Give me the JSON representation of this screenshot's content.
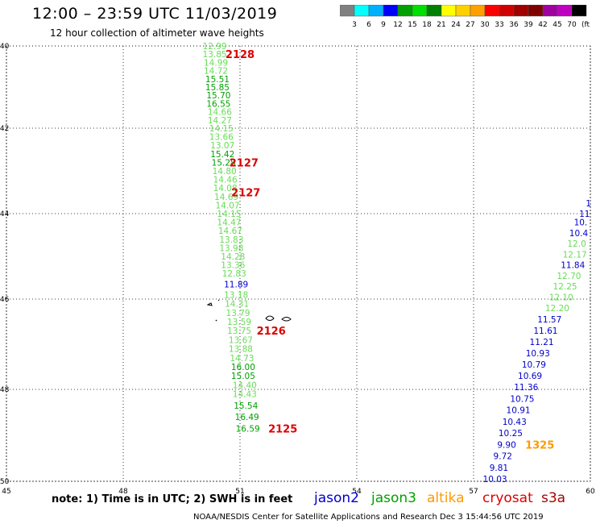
{
  "header": {
    "title": "12:00 – 23:59 UTC 11/03/2019",
    "subtitle": "12 hour collection of altimeter wave heights"
  },
  "colorbar": {
    "colors": [
      "#808080",
      "#00ffff",
      "#00b0ff",
      "#0000ff",
      "#00a000",
      "#00e000",
      "#008000",
      "#ffff00",
      "#ffd000",
      "#ffa000",
      "#ff0000",
      "#d00000",
      "#a00000",
      "#800000",
      "#a000a0",
      "#c000c0",
      "#000000"
    ],
    "labels": [
      "3",
      "6",
      "9",
      "12",
      "15",
      "18",
      "21",
      "24",
      "27",
      "30",
      "33",
      "36",
      "39",
      "42",
      "45",
      "70"
    ],
    "unit": "(ft)"
  },
  "map": {
    "lon_range": [
      45,
      60
    ],
    "lat_range": [
      -50,
      -40
    ],
    "lon_ticks": [
      45,
      48,
      51,
      54,
      57,
      60
    ],
    "lat_ticks": [
      -40,
      -42,
      -44,
      -46,
      -48,
      -50
    ],
    "lat_labels": [
      "-40",
      "-42",
      "-44",
      "-46",
      "-48",
      "-50"
    ],
    "lon_labels": [
      "45",
      "48",
      "51",
      "54",
      "57",
      "60"
    ]
  },
  "colors": {
    "jason2": "#0000cc",
    "jason3": "#00a000",
    "altika": "#ff9900",
    "cryosat": "#dd0000",
    "s3a": "#aa0000",
    "light": "#66dd55",
    "dark": "#00a000",
    "blue": "#0000cc"
  },
  "tracks": [
    {
      "obs": [
        {
          "t": "12.99",
          "lon": 50.35,
          "lat": -40.0,
          "c": "light"
        },
        {
          "t": "13.85",
          "lon": 50.35,
          "lat": -40.2,
          "c": "light"
        },
        {
          "t": "14.99",
          "lon": 50.38,
          "lat": -40.4,
          "c": "light"
        },
        {
          "t": "14.72",
          "lon": 50.38,
          "lat": -40.6,
          "c": "light"
        },
        {
          "t": "15.51",
          "lon": 50.42,
          "lat": -40.8,
          "c": "dark"
        },
        {
          "t": "15.85",
          "lon": 50.42,
          "lat": -41.0,
          "c": "dark"
        },
        {
          "t": "15.70",
          "lon": 50.45,
          "lat": -41.2,
          "c": "dark"
        },
        {
          "t": "16.55",
          "lon": 50.45,
          "lat": -41.4,
          "c": "dark"
        },
        {
          "t": "14.66",
          "lon": 50.48,
          "lat": -41.6,
          "c": "light"
        },
        {
          "t": "14.27",
          "lon": 50.48,
          "lat": -41.8,
          "c": "light"
        },
        {
          "t": "14.15",
          "lon": 50.52,
          "lat": -42.0,
          "c": "light"
        },
        {
          "t": "13.66",
          "lon": 50.52,
          "lat": -42.2,
          "c": "light"
        },
        {
          "t": "13.07",
          "lon": 50.55,
          "lat": -42.4,
          "c": "light"
        },
        {
          "t": "15.42",
          "lon": 50.55,
          "lat": -42.6,
          "c": "dark"
        },
        {
          "t": "15.28",
          "lon": 50.58,
          "lat": -42.8,
          "c": "dark"
        },
        {
          "t": "14.80",
          "lon": 50.6,
          "lat": -43.0,
          "c": "light"
        },
        {
          "t": "14.46",
          "lon": 50.62,
          "lat": -43.2,
          "c": "light"
        },
        {
          "t": "14.08",
          "lon": 50.62,
          "lat": -43.4,
          "c": "light"
        },
        {
          "t": "14.69",
          "lon": 50.65,
          "lat": -43.6,
          "c": "light"
        },
        {
          "t": "14.07",
          "lon": 50.68,
          "lat": -43.8,
          "c": "light"
        },
        {
          "t": "14.15",
          "lon": 50.72,
          "lat": -44.0,
          "c": "light"
        },
        {
          "t": "14.47",
          "lon": 50.72,
          "lat": -44.2,
          "c": "light"
        },
        {
          "t": "14.67",
          "lon": 50.75,
          "lat": -44.4,
          "c": "light"
        },
        {
          "t": "13.83",
          "lon": 50.78,
          "lat": -44.6,
          "c": "light"
        },
        {
          "t": "13.98",
          "lon": 50.78,
          "lat": -44.8,
          "c": "light"
        },
        {
          "t": "14.28",
          "lon": 50.82,
          "lat": -45.0,
          "c": "light"
        },
        {
          "t": "13.36",
          "lon": 50.82,
          "lat": -45.2,
          "c": "light"
        },
        {
          "t": "12.83",
          "lon": 50.85,
          "lat": -45.4,
          "c": "light"
        },
        {
          "t": "11.89",
          "lon": 50.9,
          "lat": -45.65,
          "c": "blue"
        },
        {
          "t": "13.18",
          "lon": 50.9,
          "lat": -45.9,
          "c": "light"
        },
        {
          "t": "14.31",
          "lon": 50.92,
          "lat": -46.1,
          "c": "light"
        },
        {
          "t": "13.79",
          "lon": 50.95,
          "lat": -46.3,
          "c": "light"
        },
        {
          "t": "13.59",
          "lon": 50.98,
          "lat": -46.5,
          "c": "light"
        },
        {
          "t": "13.75",
          "lon": 50.98,
          "lat": -46.7,
          "c": "light"
        },
        {
          "t": "13.67",
          "lon": 51.02,
          "lat": -46.9,
          "c": "light"
        },
        {
          "t": "13.88",
          "lon": 51.02,
          "lat": -47.1,
          "c": "light"
        },
        {
          "t": "14.73",
          "lon": 51.05,
          "lat": -47.3,
          "c": "light"
        },
        {
          "t": "16.00",
          "lon": 51.08,
          "lat": -47.5,
          "c": "dark"
        },
        {
          "t": "15.05",
          "lon": 51.08,
          "lat": -47.7,
          "c": "dark"
        },
        {
          "t": "14.40",
          "lon": 51.12,
          "lat": -47.9,
          "c": "light"
        },
        {
          "t": "14.43",
          "lon": 51.12,
          "lat": -48.1,
          "c": "light"
        },
        {
          "t": "15.54",
          "lon": 51.15,
          "lat": -48.35,
          "c": "dark"
        },
        {
          "t": "16.49",
          "lon": 51.18,
          "lat": -48.6,
          "c": "dark"
        },
        {
          "t": "16.59",
          "lon": 51.2,
          "lat": -48.85,
          "c": "dark"
        }
      ]
    },
    {
      "obs": [
        {
          "t": "1",
          "lon": 59.95,
          "lat": -43.75,
          "c": "blue"
        },
        {
          "t": "11",
          "lon": 59.85,
          "lat": -44.0,
          "c": "blue"
        },
        {
          "t": "10.",
          "lon": 59.75,
          "lat": -44.2,
          "c": "blue"
        },
        {
          "t": "10.4",
          "lon": 59.7,
          "lat": -44.45,
          "c": "blue"
        },
        {
          "t": "12.0",
          "lon": 59.65,
          "lat": -44.7,
          "c": "light"
        },
        {
          "t": "12.17",
          "lon": 59.6,
          "lat": -44.95,
          "c": "light"
        },
        {
          "t": "11.84",
          "lon": 59.55,
          "lat": -45.2,
          "c": "blue"
        },
        {
          "t": "12.70",
          "lon": 59.45,
          "lat": -45.45,
          "c": "light"
        },
        {
          "t": "12.25",
          "lon": 59.35,
          "lat": -45.7,
          "c": "light"
        },
        {
          "t": "12.10",
          "lon": 59.25,
          "lat": -45.95,
          "c": "light"
        },
        {
          "t": "12.20",
          "lon": 59.15,
          "lat": -46.2,
          "c": "light"
        },
        {
          "t": "11.57",
          "lon": 58.95,
          "lat": -46.45,
          "c": "blue"
        },
        {
          "t": "11.61",
          "lon": 58.85,
          "lat": -46.7,
          "c": "blue"
        },
        {
          "t": "11.21",
          "lon": 58.75,
          "lat": -46.95,
          "c": "blue"
        },
        {
          "t": "10.93",
          "lon": 58.65,
          "lat": -47.2,
          "c": "blue"
        },
        {
          "t": "10.79",
          "lon": 58.55,
          "lat": -47.45,
          "c": "blue"
        },
        {
          "t": "10.69",
          "lon": 58.45,
          "lat": -47.7,
          "c": "blue"
        },
        {
          "t": "11.36",
          "lon": 58.35,
          "lat": -47.95,
          "c": "blue"
        },
        {
          "t": "10.75",
          "lon": 58.25,
          "lat": -48.2,
          "c": "blue"
        },
        {
          "t": "10.91",
          "lon": 58.15,
          "lat": -48.45,
          "c": "blue"
        },
        {
          "t": "10.43",
          "lon": 58.05,
          "lat": -48.7,
          "c": "blue"
        },
        {
          "t": "10.25",
          "lon": 57.95,
          "lat": -48.95,
          "c": "blue"
        },
        {
          "t": "9.90",
          "lon": 57.85,
          "lat": -49.2,
          "c": "blue"
        },
        {
          "t": "9.72",
          "lon": 57.75,
          "lat": -49.45,
          "c": "blue"
        },
        {
          "t": "9.81",
          "lon": 57.65,
          "lat": -49.7,
          "c": "blue"
        },
        {
          "t": "10.03",
          "lon": 57.55,
          "lat": -49.95,
          "c": "blue"
        }
      ]
    }
  ],
  "pass_labels": [
    {
      "t": "2128",
      "lon": 51.0,
      "lat": -40.2,
      "c": "cryosat"
    },
    {
      "t": "2127",
      "lon": 51.1,
      "lat": -42.8,
      "c": "cryosat"
    },
    {
      "t": "2127",
      "lon": 51.15,
      "lat": -43.5,
      "c": "cryosat"
    },
    {
      "t": "2126",
      "lon": 51.8,
      "lat": -46.7,
      "c": "cryosat"
    },
    {
      "t": "2125",
      "lon": 52.1,
      "lat": -48.85,
      "c": "cryosat"
    },
    {
      "t": "1325",
      "lon": 58.7,
      "lat": -49.2,
      "c": "altika"
    }
  ],
  "note": "note:  1) Time is in UTC;  2) SWH is in feet",
  "legend": [
    {
      "name": "jason2",
      "c": "jason2"
    },
    {
      "name": "jason3",
      "c": "jason3"
    },
    {
      "name": "altika",
      "c": "altika"
    },
    {
      "name": "cryosat",
      "c": "cryosat"
    },
    {
      "name": "s3a",
      "c": "s3a"
    }
  ],
  "footer": "NOAA/NESDIS Center for Satellite Applications and Research    Dec  3 15:44:56 UTC 2019"
}
